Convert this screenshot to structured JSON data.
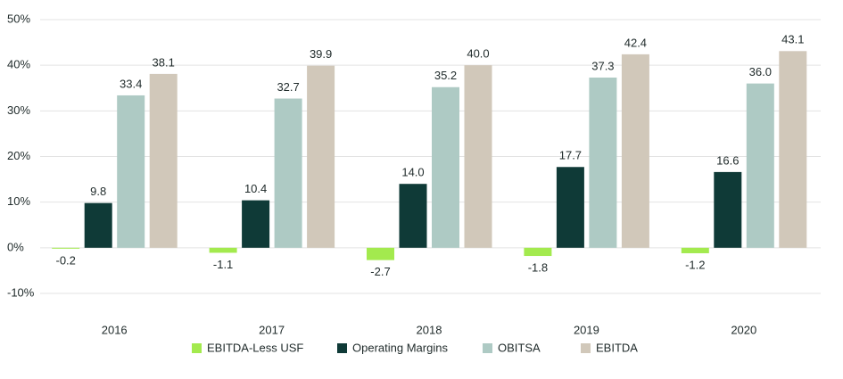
{
  "chart_data": {
    "type": "bar",
    "categories": [
      "2016",
      "2017",
      "2018",
      "2019",
      "2020"
    ],
    "series": [
      {
        "name": "EBITDA-Less USF",
        "color": "#a3ea4e",
        "values": [
          -0.2,
          -1.1,
          -2.7,
          -1.8,
          -1.2
        ],
        "value_labels": [
          "-0.2",
          "-1.1",
          "-2.7",
          "-1.8",
          "-1.2"
        ]
      },
      {
        "name": "Operating Margins",
        "color": "#0f3a37",
        "values": [
          9.8,
          10.4,
          14.0,
          17.7,
          16.6
        ],
        "value_labels": [
          "9.8",
          "10.4",
          "14.0",
          "17.7",
          "16.6"
        ]
      },
      {
        "name": "OBITSA",
        "color": "#aecac4",
        "values": [
          33.4,
          32.7,
          35.2,
          37.3,
          36.0
        ],
        "value_labels": [
          "33.4",
          "32.7",
          "35.2",
          "37.3",
          "36.0"
        ]
      },
      {
        "name": "EBITDA",
        "color": "#d1c8ba",
        "values": [
          38.1,
          39.9,
          40.0,
          42.4,
          43.1
        ],
        "value_labels": [
          "38.1",
          "39.9",
          "40.0",
          "42.4",
          "43.1"
        ]
      }
    ],
    "ylim": [
      -10,
      50
    ],
    "yticks": [
      {
        "value": -10,
        "label": "-10%"
      },
      {
        "value": 0,
        "label": "0%"
      },
      {
        "value": 10,
        "label": "10%"
      },
      {
        "value": 20,
        "label": "20%"
      },
      {
        "value": 30,
        "label": "30%"
      },
      {
        "value": 40,
        "label": "40%"
      },
      {
        "value": 50,
        "label": "50%"
      }
    ],
    "grid": true,
    "legend": "bottom"
  }
}
